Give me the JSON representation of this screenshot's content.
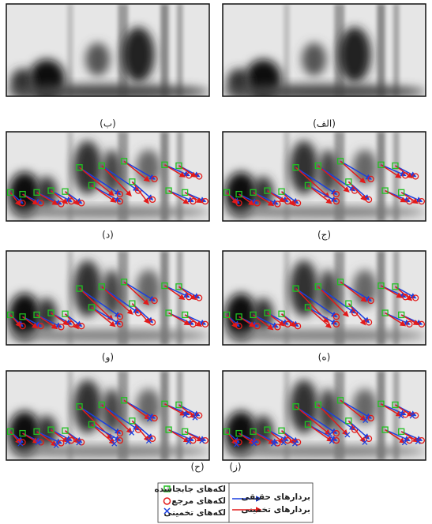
{
  "panels": [
    {
      "label": "(الف)"
    },
    {
      "label": "(ب)"
    },
    {
      "label": "(ج)"
    },
    {
      "label": "(د)"
    },
    {
      "label": "(ه)"
    },
    {
      "label": "(و)"
    },
    {
      "label": "(ز)"
    },
    {
      "label": "(ح)"
    }
  ],
  "legend": {
    "markers": [
      "لکه‌های جابجاشده",
      "لکه‌های مرجع",
      "لکه‌های تخمینی"
    ],
    "vectors": [
      "بردارهای حقیقی",
      "بردارهای تخمینی"
    ]
  }
}
